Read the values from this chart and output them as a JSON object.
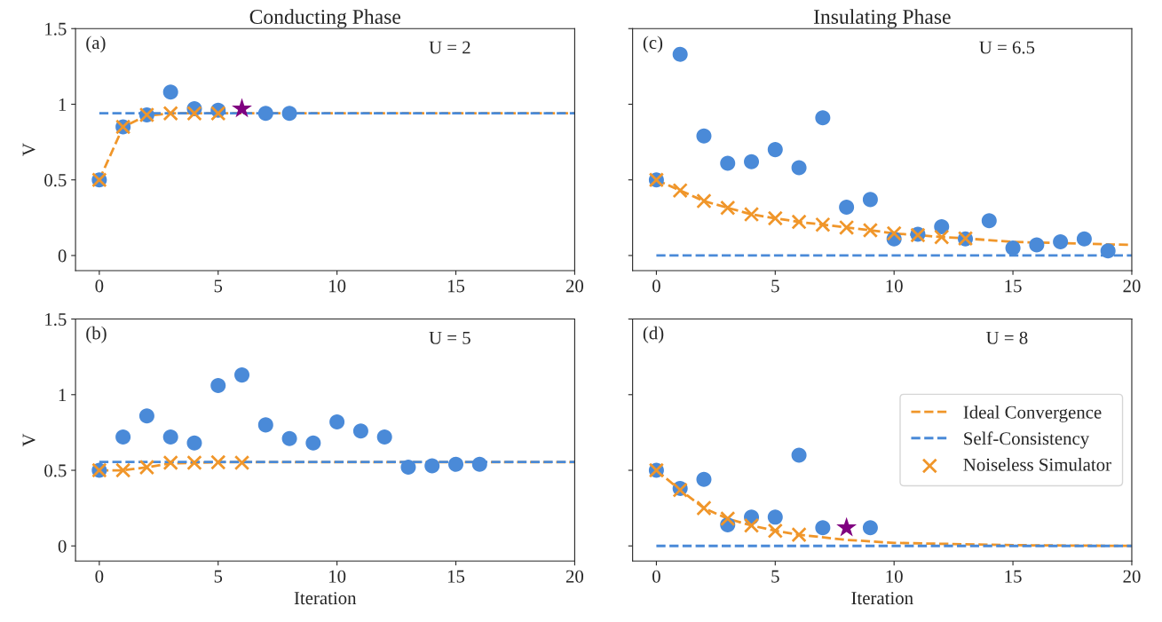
{
  "chart_data": [
    {
      "type": "scatter",
      "title": "Conducting Phase",
      "ylabel": "V",
      "annotations": [
        "(a)",
        "U = 2"
      ],
      "xlim": [
        -1,
        20
      ],
      "ylim": [
        -0.1,
        1.5
      ],
      "xticks": [
        0,
        5,
        10,
        15,
        20
      ],
      "yticks": [
        0,
        0.5,
        1,
        1.5
      ],
      "grid": false,
      "legend": false,
      "series": [
        {
          "type": "line",
          "color": "#f0962a",
          "line_style": "dashed",
          "marker": "none",
          "x": [
            0,
            1,
            2,
            3,
            4,
            20
          ],
          "values": [
            0.5,
            0.85,
            0.925,
            0.94,
            0.94,
            0.94
          ]
        },
        {
          "type": "line",
          "color": "#4a8ad8",
          "line_style": "dashed",
          "marker": "none",
          "x": [
            0,
            20
          ],
          "values": [
            0.94,
            0.94
          ]
        },
        {
          "color": "#4a8ad8",
          "marker": "circle",
          "x": [
            0,
            1,
            2,
            3,
            4,
            5,
            7,
            8
          ],
          "values": [
            0.5,
            0.85,
            0.93,
            1.08,
            0.97,
            0.96,
            0.94,
            0.94
          ]
        },
        {
          "color": "#f0962a",
          "marker": "cross",
          "x": [
            0,
            1,
            2,
            3,
            4,
            5
          ],
          "values": [
            0.5,
            0.85,
            0.93,
            0.94,
            0.94,
            0.94
          ]
        },
        {
          "color": "#800080",
          "marker": "star",
          "x": [
            6
          ],
          "values": [
            0.97
          ]
        }
      ]
    },
    {
      "type": "scatter",
      "title": "Insulating Phase",
      "annotations": [
        "(c)",
        "U = 6.5"
      ],
      "xlim": [
        -1,
        20
      ],
      "ylim": [
        -0.1,
        1.5
      ],
      "xticks": [
        0,
        5,
        10,
        15,
        20
      ],
      "yticks": [
        0,
        0.5,
        1,
        1.5
      ],
      "tick_labels": "x",
      "grid": false,
      "legend": false,
      "series": [
        {
          "type": "line",
          "color": "#f0962a",
          "line_style": "dashed",
          "marker": "none",
          "x": [
            0,
            1,
            2,
            3,
            4,
            5,
            6,
            7,
            8,
            9,
            10,
            11,
            12,
            13,
            15,
            20
          ],
          "values": [
            0.5,
            0.43,
            0.36,
            0.315,
            0.272,
            0.246,
            0.222,
            0.204,
            0.185,
            0.167,
            0.146,
            0.135,
            0.122,
            0.113,
            0.09,
            0.07
          ]
        },
        {
          "type": "line",
          "color": "#4a8ad8",
          "line_style": "dashed",
          "marker": "none",
          "x": [
            0,
            20
          ],
          "values": [
            0,
            0
          ]
        },
        {
          "color": "#4a8ad8",
          "marker": "circle",
          "x": [
            0,
            1,
            2,
            3,
            4,
            5,
            6,
            7,
            8,
            9,
            10,
            11,
            12,
            13,
            14,
            15,
            16,
            17,
            18,
            19
          ],
          "values": [
            0.5,
            1.33,
            0.79,
            0.61,
            0.62,
            0.7,
            0.58,
            0.91,
            0.32,
            0.37,
            0.11,
            0.14,
            0.19,
            0.11,
            0.23,
            0.05,
            0.07,
            0.09,
            0.11,
            0.03
          ]
        },
        {
          "color": "#f0962a",
          "marker": "cross",
          "x": [
            0,
            1,
            2,
            3,
            4,
            5,
            6,
            7,
            8,
            9,
            10,
            11,
            12,
            13
          ],
          "values": [
            0.5,
            0.43,
            0.36,
            0.315,
            0.272,
            0.246,
            0.222,
            0.204,
            0.185,
            0.167,
            0.146,
            0.135,
            0.122,
            0.113
          ]
        }
      ]
    },
    {
      "type": "scatter",
      "xlabel": "Iteration",
      "ylabel": "V",
      "annotations": [
        "(b)",
        "U = 5"
      ],
      "xlim": [
        -1,
        20
      ],
      "ylim": [
        -0.1,
        1.5
      ],
      "xticks": [
        0,
        5,
        10,
        15,
        20
      ],
      "yticks": [
        0,
        0.5,
        1,
        1.5
      ],
      "grid": false,
      "legend": false,
      "series": [
        {
          "type": "line",
          "color": "#f0962a",
          "line_style": "dashed",
          "marker": "none",
          "x": [
            0,
            1,
            2,
            3,
            4,
            5,
            6,
            20
          ],
          "values": [
            0.5,
            0.5,
            0.52,
            0.545,
            0.55,
            0.553,
            0.553,
            0.553
          ]
        },
        {
          "type": "line",
          "color": "#4a8ad8",
          "line_style": "dashed",
          "marker": "none",
          "x": [
            0,
            20
          ],
          "values": [
            0.555,
            0.555
          ]
        },
        {
          "color": "#4a8ad8",
          "marker": "circle",
          "x": [
            0,
            1,
            2,
            3,
            4,
            5,
            6,
            7,
            8,
            9,
            10,
            11,
            12,
            13,
            14,
            15,
            16
          ],
          "values": [
            0.5,
            0.72,
            0.86,
            0.72,
            0.68,
            1.06,
            1.13,
            0.8,
            0.71,
            0.68,
            0.82,
            0.76,
            0.72,
            0.52,
            0.53,
            0.54,
            0.54
          ]
        },
        {
          "color": "#f0962a",
          "marker": "cross",
          "x": [
            0,
            1,
            2,
            3,
            4,
            5,
            6
          ],
          "values": [
            0.5,
            0.5,
            0.52,
            0.55,
            0.55,
            0.553,
            0.55
          ]
        }
      ]
    },
    {
      "type": "scatter",
      "xlabel": "Iteration",
      "annotations": [
        "(d)",
        "U = 8"
      ],
      "xlim": [
        -1,
        20
      ],
      "ylim": [
        -0.1,
        1.5
      ],
      "xticks": [
        0,
        5,
        10,
        15,
        20
      ],
      "yticks": [
        0,
        0.5,
        1,
        1.5
      ],
      "tick_labels": "x",
      "grid": false,
      "legend": "center right",
      "series": [
        {
          "type": "line",
          "name": "Ideal Convergence",
          "color": "#f0962a",
          "line_style": "dashed",
          "marker": "none",
          "x": [
            0,
            1,
            2,
            3,
            4,
            5,
            6,
            8,
            10,
            15,
            20
          ],
          "values": [
            0.5,
            0.37,
            0.25,
            0.18,
            0.135,
            0.1,
            0.074,
            0.04,
            0.02,
            0.005,
            0
          ]
        },
        {
          "type": "line",
          "name": "Self-Consistency",
          "color": "#4a8ad8",
          "line_style": "dashed",
          "marker": "none",
          "x": [
            0,
            20
          ],
          "values": [
            0,
            0
          ]
        },
        {
          "color": "#4a8ad8",
          "marker": "circle",
          "x": [
            0,
            1,
            2,
            3,
            4,
            5,
            6,
            7,
            9
          ],
          "values": [
            0.5,
            0.38,
            0.44,
            0.14,
            0.19,
            0.19,
            0.6,
            0.12,
            0.12
          ]
        },
        {
          "name": "Noiseless Simulator",
          "color": "#f0962a",
          "marker": "cross",
          "x": [
            0,
            1,
            2,
            3,
            4,
            5,
            6
          ],
          "values": [
            0.5,
            0.37,
            0.25,
            0.18,
            0.135,
            0.1,
            0.074
          ]
        },
        {
          "color": "#800080",
          "marker": "star",
          "x": [
            8
          ],
          "values": [
            0.12
          ]
        }
      ]
    }
  ]
}
